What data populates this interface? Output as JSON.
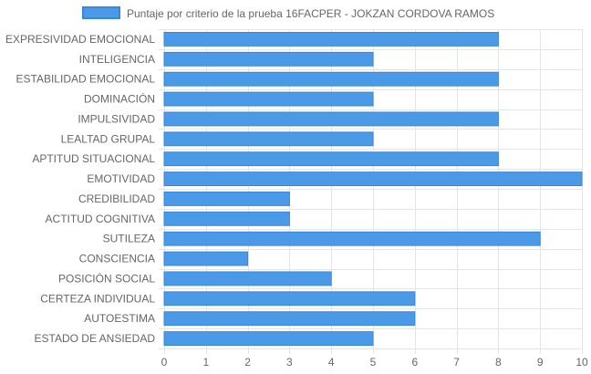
{
  "chart_data": {
    "type": "bar",
    "orientation": "horizontal",
    "categories": [
      "EXPRESIVIDAD EMOCIONAL",
      "INTELIGENCIA",
      "ESTABILIDAD EMOCIONAL",
      "DOMINACIÓN",
      "IMPULSIVIDAD",
      "LEALTAD GRUPAL",
      "APTITUD SITUACIONAL",
      "EMOTIVIDAD",
      "CREDIBILIDAD",
      "ACTITUD COGNITIVA",
      "SUTILEZA",
      "CONSCIENCIA",
      "POSICIÓN SOCIAL",
      "CERTEZA INDIVIDUAL",
      "AUTOESTIMA",
      "ESTADO DE ANSIEDAD"
    ],
    "series": [
      {
        "name": "Puntaje por criterio de la prueba 16FACPER - JOKZAN CORDOVA RAMOS",
        "values": [
          8,
          5,
          8,
          5,
          8,
          5,
          8,
          10,
          3,
          3,
          9,
          2,
          4,
          6,
          6,
          5
        ]
      }
    ],
    "xticks": [
      "0",
      "1",
      "2",
      "3",
      "4",
      "5",
      "6",
      "7",
      "8",
      "9",
      "10"
    ],
    "xlim": [
      0,
      10
    ],
    "grid": true,
    "legend_position": "top-center",
    "colors": {
      "bar_fill": "#4a9ae8",
      "bar_stroke": "#3a86d8",
      "grid": "#e5e5e5",
      "axis_text": "#666666"
    }
  }
}
